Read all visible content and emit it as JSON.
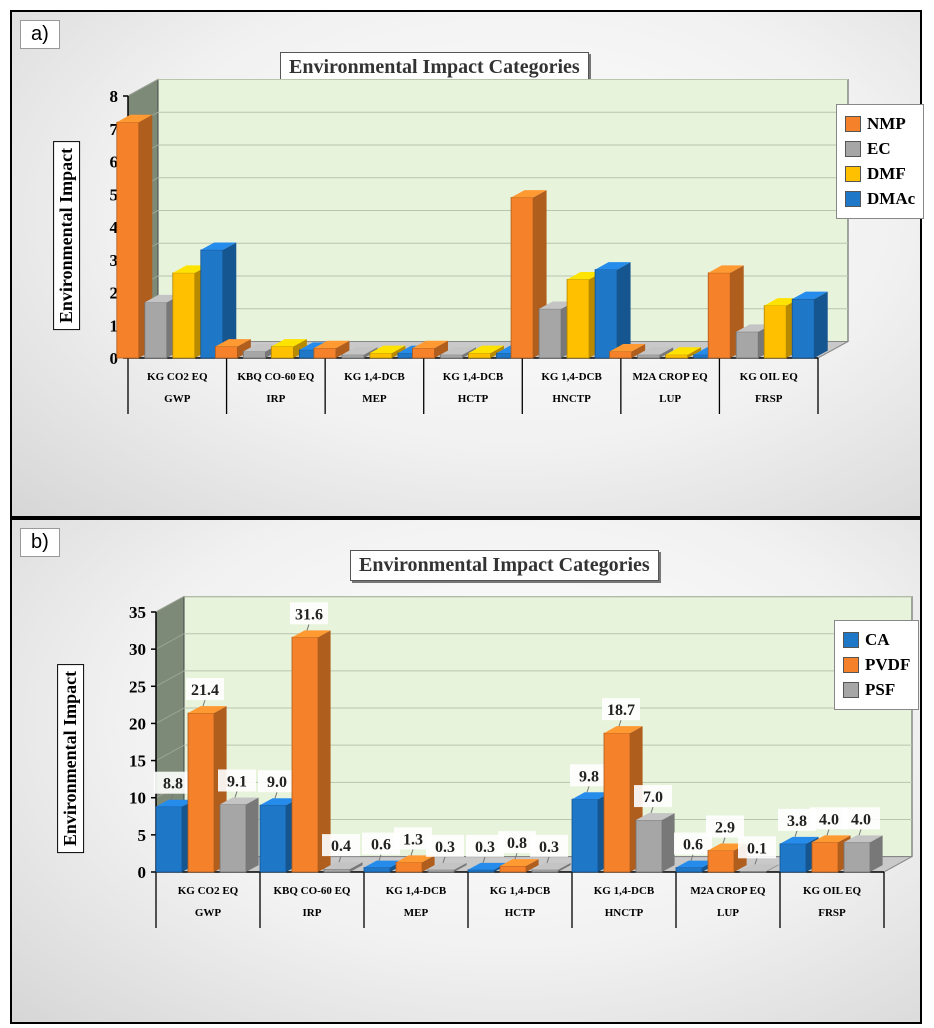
{
  "chart_data": [
    {
      "type": "bar",
      "panel_label": "a)",
      "title": "Environmental Impact Categories",
      "ylabel": "Environmental Impact",
      "ylim": [
        0,
        8
      ],
      "yticks": [
        "0",
        "1",
        "2",
        "3",
        "4",
        "5",
        "6",
        "7",
        "8"
      ],
      "categories": [
        {
          "unit": "KG CO2 EQ",
          "name": "GWP"
        },
        {
          "unit": "KBQ CO-60 EQ",
          "name": "IRP"
        },
        {
          "unit": "KG 1,4-DCB",
          "name": "MEP"
        },
        {
          "unit": "KG 1,4-DCB",
          "name": "HCTP"
        },
        {
          "unit": "KG 1,4-DCB",
          "name": "HNCTP"
        },
        {
          "unit": "M2A CROP EQ",
          "name": "LUP"
        },
        {
          "unit": "KG OIL EQ",
          "name": "FRSP"
        }
      ],
      "series": [
        {
          "name": "NMP",
          "color": "#f5822a",
          "values": [
            7.2,
            0.35,
            0.3,
            0.3,
            4.9,
            0.2,
            2.6
          ]
        },
        {
          "name": "EC",
          "color": "#a6a6a6",
          "values": [
            1.7,
            0.2,
            0.1,
            0.1,
            1.5,
            0.1,
            0.8
          ]
        },
        {
          "name": "DMF",
          "color": "#ffc000",
          "values": [
            2.6,
            0.35,
            0.15,
            0.15,
            2.4,
            0.1,
            1.6
          ]
        },
        {
          "name": "DMAc",
          "color": "#1f77c8",
          "values": [
            3.3,
            0.25,
            0.15,
            0.15,
            2.7,
            0.1,
            1.8
          ]
        }
      ],
      "grid": true,
      "legend": "right"
    },
    {
      "type": "bar",
      "panel_label": "b)",
      "title": "Environmental Impact Categories",
      "ylabel": "Environmental Impact",
      "ylim": [
        0,
        35
      ],
      "yticks": [
        "0",
        "5",
        "10",
        "15",
        "20",
        "25",
        "30",
        "35"
      ],
      "categories": [
        {
          "unit": "KG CO2 EQ",
          "name": "GWP"
        },
        {
          "unit": "KBQ CO-60 EQ",
          "name": "IRP"
        },
        {
          "unit": "KG 1,4-DCB",
          "name": "MEP"
        },
        {
          "unit": "KG 1,4-DCB",
          "name": "HCTP"
        },
        {
          "unit": "KG 1,4-DCB",
          "name": "HNCTP"
        },
        {
          "unit": "M2A CROP EQ",
          "name": "LUP"
        },
        {
          "unit": "KG OIL EQ",
          "name": "FRSP"
        }
      ],
      "series": [
        {
          "name": "CA",
          "color": "#1f77c8",
          "values": [
            8.8,
            9.0,
            0.6,
            0.3,
            9.8,
            0.6,
            3.8
          ],
          "labels": [
            "8.8",
            "9.0",
            "0.6",
            "0.3",
            "9.8",
            "0.6",
            "3.8"
          ]
        },
        {
          "name": "PVDF",
          "color": "#f5822a",
          "values": [
            21.4,
            31.6,
            1.3,
            0.8,
            18.7,
            2.9,
            4.0
          ],
          "labels": [
            "21.4",
            "31.6",
            "1.3",
            "0.8",
            "18.7",
            "2.9",
            "4.0"
          ]
        },
        {
          "name": "PSF",
          "color": "#a6a6a6",
          "values": [
            9.1,
            0.4,
            0.3,
            0.3,
            7.0,
            0.1,
            4.0
          ],
          "labels": [
            "9.1",
            "0.4",
            "0.3",
            "0.3",
            "7.0",
            "0.1",
            "4.0"
          ]
        }
      ],
      "grid": true,
      "legend": "right"
    }
  ]
}
